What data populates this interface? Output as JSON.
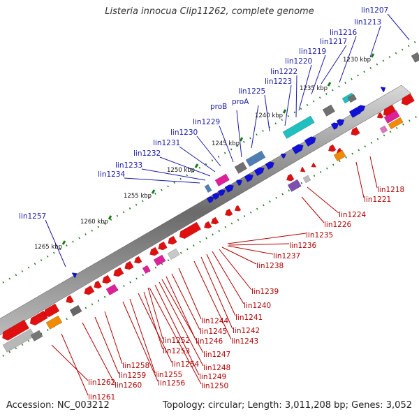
{
  "title": "Listeria innocua Clip11262, complete genome",
  "footer": {
    "accession": "Accession: NC_003212",
    "summary": "Topology: circular; Length: 3,011,208 bp; Genes: 3,052"
  },
  "colors": {
    "forward": "#1010d8",
    "reverse": "#e01010",
    "teal": "#20c0c0",
    "magenta": "#e0209a",
    "orange": "#f08a00",
    "gray": "#707070",
    "label_blue": "#1a1aa8",
    "label_red": "#b10000",
    "tick": "#1a7a1a"
  },
  "kbp_ticks": [
    "1230 kbp",
    "1235 kbp",
    "1240 kbp",
    "1245 kbp",
    "1250 kbp",
    "1255 kbp",
    "1260 kbp",
    "1265 kbp"
  ],
  "top_labels": [
    "lin1207",
    "lin1213",
    "lin1216",
    "lin1217",
    "lin1219",
    "lin1220",
    "lin1222",
    "lin1223",
    "lin1225",
    "proA",
    "proB",
    "lin1229",
    "lin1230",
    "lin1231",
    "lin1232",
    "lin1233",
    "lin1234",
    "lin1257"
  ],
  "bottom_labels": [
    "lin1218",
    "lin1221",
    "lin1224",
    "lin1226",
    "lin1235",
    "lin1236",
    "lin1237",
    "lin1238",
    "lin1239",
    "lin1240",
    "lin1241",
    "lin1242",
    "lin1243",
    "lin1244",
    "lin1245",
    "lin1246",
    "lin1247",
    "lin1248",
    "lin1249",
    "lin1250",
    "lin1252",
    "lin1253",
    "lin1254",
    "lin1255",
    "lin1256",
    "lin1258",
    "lin1259",
    "lin1260",
    "lin1261",
    "lin1262"
  ]
}
